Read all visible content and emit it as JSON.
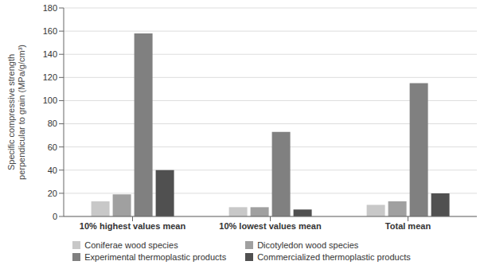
{
  "chart_data": {
    "type": "bar",
    "categories": [
      "10% highest values mean",
      "10% lowest values mean",
      "Total mean"
    ],
    "series": [
      {
        "name": "Coniferae wood species",
        "color": "#c8c8c8",
        "values": [
          13,
          8,
          10
        ]
      },
      {
        "name": "Dicotyledon wood species",
        "color": "#a0a0a0",
        "values": [
          19,
          8,
          13
        ]
      },
      {
        "name": "Experimental thermoplastic products",
        "color": "#808080",
        "values": [
          158,
          73,
          115
        ]
      },
      {
        "name": "Commercialized thermoplastic products",
        "color": "#505050",
        "values": [
          40,
          6,
          20
        ]
      }
    ],
    "ylabel": "Specific compressive strength\nperpendicular to grain (MPa/g/cm³)",
    "ylim": [
      0,
      180
    ],
    "yticks": [
      0,
      20,
      40,
      60,
      80,
      100,
      120,
      140,
      160,
      180
    ],
    "grid": true,
    "legend": "bottom"
  }
}
